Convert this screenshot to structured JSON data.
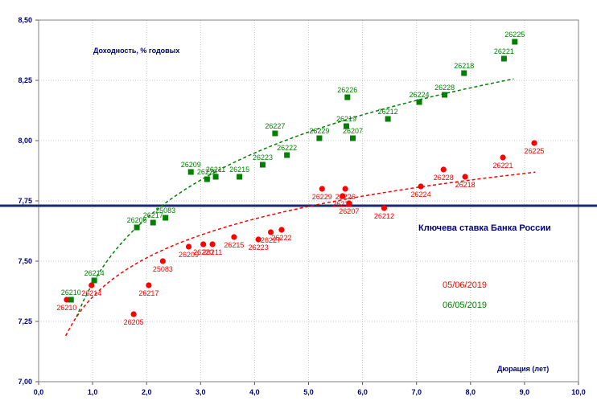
{
  "chart_data": {
    "type": "scatter",
    "title": "",
    "ylabel": "Доходность, % годовых",
    "xlabel": "Дюрация (лет)",
    "xlim": [
      0,
      10
    ],
    "ylim": [
      7.0,
      8.5
    ],
    "x_ticks": [
      "0,0",
      "1,0",
      "2,0",
      "3,0",
      "4,0",
      "5,0",
      "6,0",
      "7,0",
      "8,0",
      "9,0",
      "10,0"
    ],
    "y_ticks": [
      "7,00",
      "7,25",
      "7,50",
      "7,75",
      "8,00",
      "8,25",
      "8,50"
    ],
    "grid": true,
    "reference_line": {
      "label": "Ключева ставка Банка России",
      "y": 7.73,
      "color": "#1a2a6c"
    },
    "legend": [
      {
        "label": "05/06/2019",
        "color": "#ff0000"
      },
      {
        "label": "06/05/2019",
        "color": "#008000"
      }
    ],
    "series": [
      {
        "name": "05/06/2019",
        "color": "#ff0000",
        "marker": "circle",
        "points": [
          {
            "x": 0.52,
            "y": 7.34,
            "label": "26210"
          },
          {
            "x": 0.98,
            "y": 7.4,
            "label": "26214"
          },
          {
            "x": 1.76,
            "y": 7.28,
            "label": "26205"
          },
          {
            "x": 2.04,
            "y": 7.4,
            "label": "26217"
          },
          {
            "x": 2.3,
            "y": 7.5,
            "label": "25083"
          },
          {
            "x": 2.78,
            "y": 7.56,
            "label": "26209"
          },
          {
            "x": 3.05,
            "y": 7.57,
            "label": "26220"
          },
          {
            "x": 3.22,
            "y": 7.57,
            "label": "26211"
          },
          {
            "x": 3.62,
            "y": 7.6,
            "label": "26215"
          },
          {
            "x": 4.07,
            "y": 7.59,
            "label": "26223"
          },
          {
            "x": 4.3,
            "y": 7.62,
            "label": "26227"
          },
          {
            "x": 4.5,
            "y": 7.63,
            "label": "26222"
          },
          {
            "x": 5.25,
            "y": 7.8,
            "label": "26229"
          },
          {
            "x": 5.63,
            "y": 7.77,
            "label": "26219"
          },
          {
            "x": 5.68,
            "y": 7.8,
            "label": "26226"
          },
          {
            "x": 5.75,
            "y": 7.74,
            "label": "26207"
          },
          {
            "x": 6.4,
            "y": 7.72,
            "label": "26212"
          },
          {
            "x": 7.08,
            "y": 7.81,
            "label": "26224"
          },
          {
            "x": 7.5,
            "y": 7.88,
            "label": "26228"
          },
          {
            "x": 7.9,
            "y": 7.85,
            "label": "26218"
          },
          {
            "x": 8.6,
            "y": 7.93,
            "label": "26221"
          },
          {
            "x": 9.18,
            "y": 7.99,
            "label": "26225"
          }
        ],
        "trend": {
          "from": 0.5,
          "to": 9.2,
          "y_at_1": 7.352,
          "slope_ln": 0.233
        }
      },
      {
        "name": "06/05/2019",
        "color": "#008000",
        "marker": "square",
        "points": [
          {
            "x": 0.6,
            "y": 7.34,
            "label": "26210"
          },
          {
            "x": 1.03,
            "y": 7.42,
            "label": "26214"
          },
          {
            "x": 1.82,
            "y": 7.64,
            "label": "26205"
          },
          {
            "x": 2.12,
            "y": 7.66,
            "label": "26217"
          },
          {
            "x": 2.35,
            "y": 7.68,
            "label": "25083"
          },
          {
            "x": 2.82,
            "y": 7.87,
            "label": "26209"
          },
          {
            "x": 3.12,
            "y": 7.84,
            "label": "26220"
          },
          {
            "x": 3.28,
            "y": 7.85,
            "label": "26211"
          },
          {
            "x": 3.72,
            "y": 7.85,
            "label": "26215"
          },
          {
            "x": 4.15,
            "y": 7.9,
            "label": "26223"
          },
          {
            "x": 4.38,
            "y": 8.03,
            "label": "26227"
          },
          {
            "x": 4.6,
            "y": 7.94,
            "label": "26222"
          },
          {
            "x": 5.2,
            "y": 8.01,
            "label": "26229"
          },
          {
            "x": 5.7,
            "y": 8.06,
            "label": "26219"
          },
          {
            "x": 5.72,
            "y": 8.18,
            "label": "26226"
          },
          {
            "x": 5.82,
            "y": 8.01,
            "label": "26207"
          },
          {
            "x": 6.47,
            "y": 8.09,
            "label": "26212"
          },
          {
            "x": 7.05,
            "y": 8.16,
            "label": "26224"
          },
          {
            "x": 7.52,
            "y": 8.19,
            "label": "26228"
          },
          {
            "x": 7.88,
            "y": 8.28,
            "label": "26218"
          },
          {
            "x": 8.62,
            "y": 8.34,
            "label": "26221"
          },
          {
            "x": 8.82,
            "y": 8.41,
            "label": "26225"
          }
        ],
        "trend": {
          "from": 0.7,
          "to": 8.8,
          "y_at_1": 7.408,
          "slope_ln": 0.39
        }
      }
    ]
  }
}
